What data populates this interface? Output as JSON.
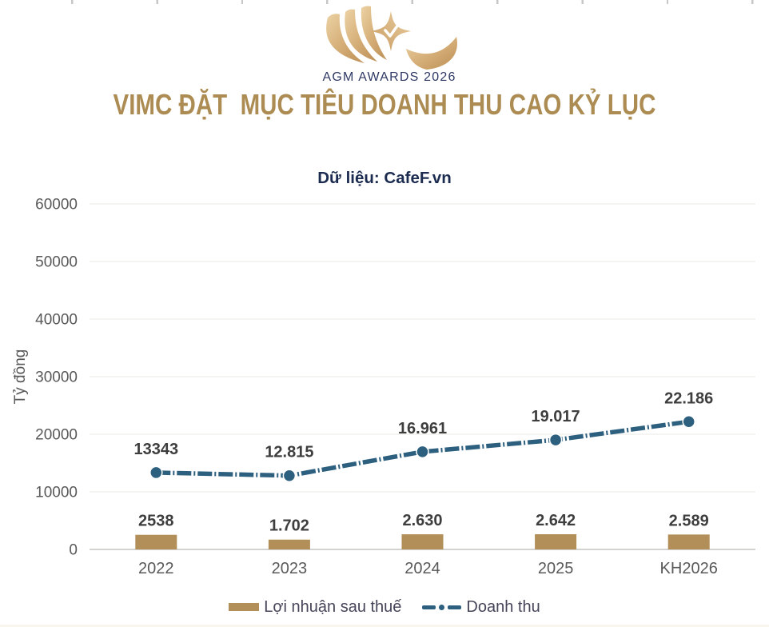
{
  "page": {
    "title": "VIMC ĐẶT  MỤC TIÊU DOANH THU CAO KỶ LỤC",
    "subtitle": "Dữ liệu: CafeF.vn",
    "logo_text": "AGM AWARDS 2026"
  },
  "colors": {
    "title_gold": "#ac8c52",
    "bar_gold": "#b28e59",
    "line_blue": "#2d5f7f",
    "subtitle_navy": "#1c2b50",
    "logo_navy": "#2f3965",
    "axis_text": "#595959",
    "data_label": "#3e3e3e",
    "gridline": "#e8e8e6",
    "axis_line": "#c3c3c1"
  },
  "chart_data": {
    "type": "bar+line combo",
    "categories": [
      "2022",
      "2023",
      "2024",
      "2025",
      "KH2026"
    ],
    "series": [
      {
        "name": "Lợi nhuận sau thuế",
        "type": "bar",
        "values": [
          2538,
          1702,
          2630,
          2642,
          2589
        ],
        "labels": [
          "2538",
          "1.702",
          "2.630",
          "2.642",
          "2.589"
        ],
        "color": "#b28e59"
      },
      {
        "name": "Doanh thu",
        "type": "line",
        "values": [
          13343,
          12815,
          16961,
          19017,
          22186
        ],
        "labels": [
          "13343",
          "12.815",
          "16.961",
          "19.017",
          "22.186"
        ],
        "color": "#2d5f7f",
        "style": "dash-dot line with round markers"
      }
    ],
    "ylabel": "Tỷ đồng",
    "xlabel": "",
    "ylim": [
      0,
      60000
    ],
    "ytick_step": 10000,
    "grid": "horizontal",
    "legend_position": "bottom"
  },
  "legend": {
    "items": [
      {
        "label": "Lợi nhuận sau thuế",
        "swatch": "bar"
      },
      {
        "label": "Doanh thu",
        "swatch": "line-dot"
      }
    ]
  }
}
